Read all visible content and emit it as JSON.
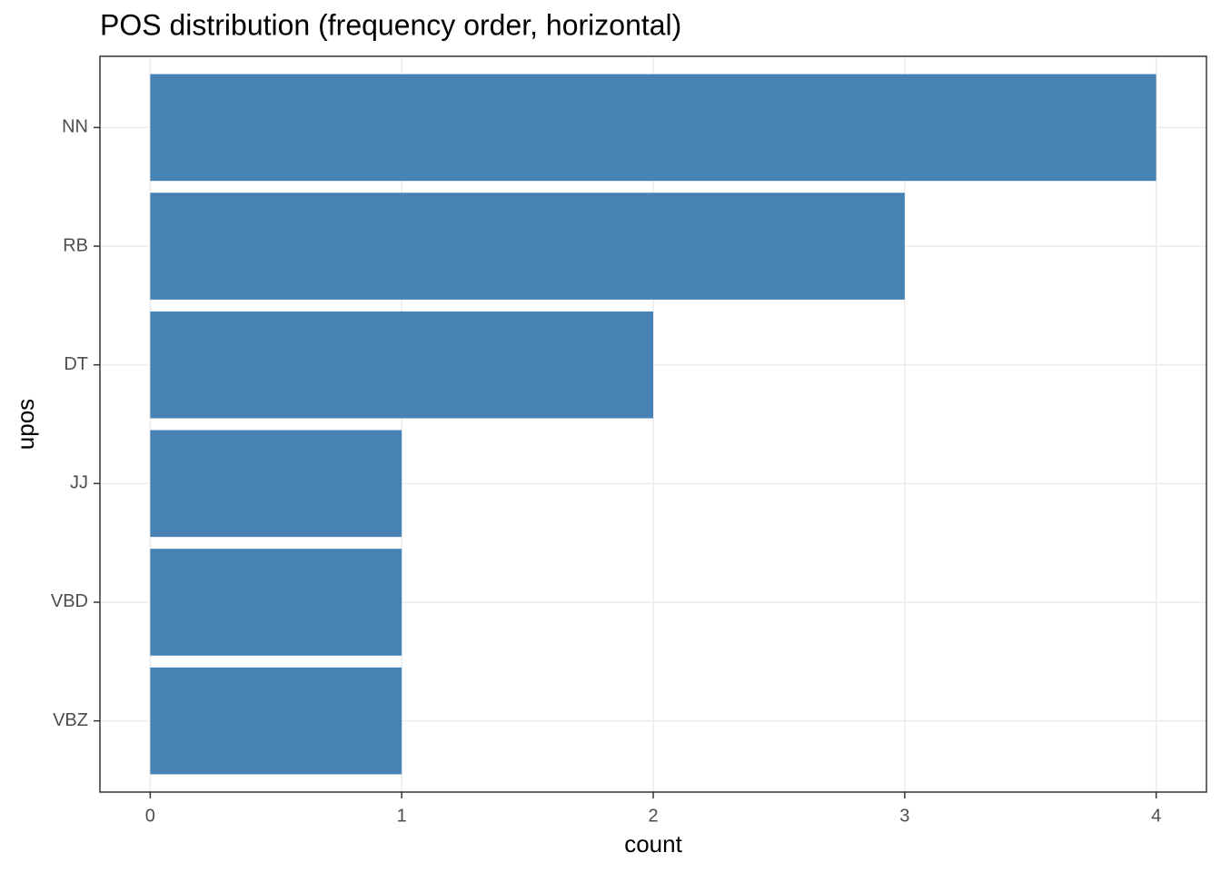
{
  "chart_data": {
    "type": "bar",
    "orientation": "horizontal",
    "title": "POS distribution (frequency order, horizontal)",
    "x_label": "count",
    "y_label": "upos",
    "categories": [
      "NN",
      "RB",
      "DT",
      "JJ",
      "VBD",
      "VBZ"
    ],
    "values": [
      4,
      3,
      2,
      1,
      1,
      1
    ],
    "color": "#4682b4",
    "xlim": [
      -0.2,
      4.2
    ],
    "xticks": [
      0,
      1,
      2,
      3,
      4
    ],
    "grid": true
  }
}
